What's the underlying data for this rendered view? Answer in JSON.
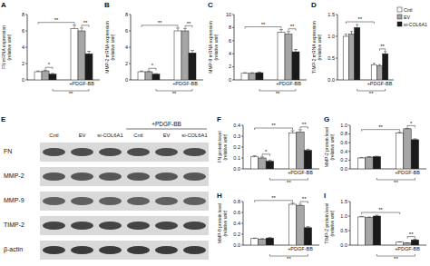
{
  "chart_data": [
    {
      "panel": "A",
      "type": "bar",
      "y_label": [
        "FN mRNA expression",
        "(relative unit)"
      ],
      "categories": [
        null,
        "+PDGF-BB"
      ],
      "ylim": [
        0,
        8
      ],
      "yticks": [
        0,
        2,
        4,
        6,
        8
      ],
      "series": [
        {
          "color": "#ffffff",
          "values": [
            1.0,
            6.3
          ],
          "errors": [
            0.08,
            0.4
          ]
        },
        {
          "color": "#a6a6a6",
          "values": [
            1.1,
            6.0
          ],
          "errors": [
            0.1,
            0.35
          ]
        },
        {
          "color": "#1a1a1a",
          "values": [
            0.7,
            3.2
          ],
          "errors": [
            0.08,
            0.3
          ]
        }
      ],
      "brackets": [
        {
          "text": "*",
          "from": [
            1,
            0
          ],
          "to": [
            2,
            0
          ]
        },
        {
          "text": "**",
          "from": [
            1,
            1
          ],
          "to": [
            2,
            1
          ]
        },
        {
          "text": "**",
          "from": [
            0,
            0
          ],
          "to": [
            0,
            1
          ]
        }
      ],
      "brackets_below": [
        {
          "text": "**",
          "from": [
            2,
            0
          ],
          "to": [
            2,
            1
          ]
        }
      ]
    },
    {
      "panel": "B",
      "type": "bar",
      "y_label": [
        "MMP-2 mRNA expression",
        "(relative unit)"
      ],
      "categories": [
        null,
        "+PDGF-BB"
      ],
      "ylim": [
        0,
        8
      ],
      "yticks": [
        0,
        2,
        4,
        6,
        8
      ],
      "series": [
        {
          "color": "#ffffff",
          "values": [
            1.0,
            6.0
          ],
          "errors": [
            0.08,
            0.35
          ]
        },
        {
          "color": "#a6a6a6",
          "values": [
            1.0,
            6.0
          ],
          "errors": [
            0.08,
            0.3
          ]
        },
        {
          "color": "#1a1a1a",
          "values": [
            0.7,
            3.3
          ],
          "errors": [
            0.06,
            0.3
          ]
        }
      ],
      "brackets": [
        {
          "text": "*",
          "from": [
            1,
            0
          ],
          "to": [
            2,
            0
          ]
        },
        {
          "text": "**",
          "from": [
            1,
            1
          ],
          "to": [
            2,
            1
          ]
        },
        {
          "text": "**",
          "from": [
            0,
            0
          ],
          "to": [
            0,
            1
          ]
        }
      ],
      "brackets_below": [
        {
          "text": "**",
          "from": [
            2,
            0
          ],
          "to": [
            2,
            1
          ]
        }
      ]
    },
    {
      "panel": "C",
      "type": "bar",
      "y_label": [
        "MMP-9 mRNA expression",
        "(relative unit)"
      ],
      "categories": [
        null,
        "+PDGF-BB"
      ],
      "ylim": [
        0,
        10
      ],
      "yticks": [
        0,
        2,
        4,
        6,
        8,
        10
      ],
      "series": [
        {
          "color": "#ffffff",
          "values": [
            1.0,
            7.3
          ],
          "errors": [
            0.1,
            0.4
          ]
        },
        {
          "color": "#a6a6a6",
          "values": [
            1.0,
            7.0
          ],
          "errors": [
            0.1,
            0.4
          ]
        },
        {
          "color": "#1a1a1a",
          "values": [
            1.1,
            4.3
          ],
          "errors": [
            0.1,
            0.35
          ]
        }
      ],
      "brackets": [
        {
          "text": "**",
          "from": [
            1,
            1
          ],
          "to": [
            2,
            1
          ]
        },
        {
          "text": "**",
          "from": [
            0,
            0
          ],
          "to": [
            0,
            1
          ]
        }
      ],
      "brackets_below": [
        {
          "text": "**",
          "from": [
            2,
            0
          ],
          "to": [
            2,
            1
          ]
        }
      ]
    },
    {
      "panel": "D",
      "type": "bar",
      "y_label": [
        "TIMP-2 mRNA expression",
        "(relative unit)"
      ],
      "categories": [
        null,
        "+PDGF-BB"
      ],
      "ylim": [
        0,
        1.5
      ],
      "yticks": [
        {
          "value": 0,
          "label": "0.0"
        },
        {
          "value": 0.5,
          "label": "0.5"
        },
        {
          "value": 1,
          "label": "1.0"
        },
        {
          "value": 1.5,
          "label": "1.5"
        }
      ],
      "legend": "right",
      "series": [
        {
          "name": "Cntl",
          "color": "#ffffff",
          "values": [
            1.0,
            0.35
          ],
          "errors": [
            0.05,
            0.03
          ]
        },
        {
          "name": "EV",
          "color": "#a6a6a6",
          "values": [
            1.05,
            0.32
          ],
          "errors": [
            0.06,
            0.03
          ]
        },
        {
          "name": "si-COL6A1",
          "color": "#1a1a1a",
          "values": [
            1.2,
            0.6
          ],
          "errors": [
            0.07,
            0.05
          ]
        }
      ],
      "brackets": [
        {
          "text": "**",
          "from": [
            1,
            1
          ],
          "to": [
            2,
            1
          ]
        },
        {
          "text": "**",
          "from": [
            0,
            0
          ],
          "to": [
            0,
            1
          ]
        }
      ],
      "brackets_below": [
        {
          "text": "**",
          "from": [
            2,
            0
          ],
          "to": [
            2,
            1
          ]
        }
      ]
    },
    {
      "panel": "F",
      "type": "bar",
      "y_label": [
        "FN protein level",
        "(relative unit)"
      ],
      "categories": [
        null,
        "+PDGF-BB"
      ],
      "ylim": [
        0,
        0.4
      ],
      "yticks": [
        {
          "value": 0,
          "label": "0.0"
        },
        {
          "value": 0.1,
          "label": "0.1"
        },
        {
          "value": 0.2,
          "label": "0.2"
        },
        {
          "value": 0.3,
          "label": "0.3"
        },
        {
          "value": 0.4,
          "label": "0.4"
        }
      ],
      "series": [
        {
          "color": "#ffffff",
          "values": [
            0.11,
            0.33
          ],
          "errors": [
            0.01,
            0.02
          ]
        },
        {
          "color": "#a6a6a6",
          "values": [
            0.1,
            0.34
          ],
          "errors": [
            0.01,
            0.02
          ]
        },
        {
          "color": "#1a1a1a",
          "values": [
            0.07,
            0.17
          ],
          "errors": [
            0.01,
            0.01
          ]
        }
      ],
      "brackets": [
        {
          "text": "*",
          "from": [
            1,
            0
          ],
          "to": [
            2,
            0
          ]
        },
        {
          "text": "**",
          "from": [
            1,
            1
          ],
          "to": [
            2,
            1
          ]
        },
        {
          "text": "**",
          "from": [
            0,
            0
          ],
          "to": [
            0,
            1
          ]
        }
      ],
      "brackets_below": [
        {
          "text": "**",
          "from": [
            2,
            0
          ],
          "to": [
            2,
            1
          ]
        }
      ]
    },
    {
      "panel": "G",
      "type": "bar",
      "y_label": [
        "MMP-2 protein level",
        "(relative unit)"
      ],
      "categories": [
        null,
        "+PDGF-BB"
      ],
      "ylim": [
        0,
        1.0
      ],
      "yticks": [
        {
          "value": 0,
          "label": "0.0"
        },
        {
          "value": 0.2,
          "label": "0.2"
        },
        {
          "value": 0.4,
          "label": "0.4"
        },
        {
          "value": 0.6,
          "label": "0.6"
        },
        {
          "value": 0.8,
          "label": "0.8"
        },
        {
          "value": 1,
          "label": "1.0"
        }
      ],
      "series": [
        {
          "color": "#ffffff",
          "values": [
            0.25,
            0.82
          ],
          "errors": [
            0.01,
            0.02
          ]
        },
        {
          "color": "#a6a6a6",
          "values": [
            0.27,
            0.92
          ],
          "errors": [
            0.01,
            0.01
          ]
        },
        {
          "color": "#1a1a1a",
          "values": [
            0.28,
            0.67
          ],
          "errors": [
            0.01,
            0.02
          ]
        }
      ],
      "brackets": [
        {
          "text": "*",
          "from": [
            1,
            1
          ],
          "to": [
            2,
            1
          ]
        },
        {
          "text": "**",
          "from": [
            0,
            0
          ],
          "to": [
            0,
            1
          ]
        }
      ],
      "brackets_below": [
        {
          "text": "**",
          "from": [
            2,
            0
          ],
          "to": [
            2,
            1
          ]
        }
      ]
    },
    {
      "panel": "H",
      "type": "bar",
      "y_label": [
        "MMP-9 protein level",
        "(relative unit)"
      ],
      "categories": [
        null,
        "+PDGF-BB"
      ],
      "ylim": [
        0,
        0.8
      ],
      "yticks": [
        {
          "value": 0,
          "label": "0.0"
        },
        {
          "value": 0.2,
          "label": "0.2"
        },
        {
          "value": 0.4,
          "label": "0.4"
        },
        {
          "value": 0.6,
          "label": "0.6"
        },
        {
          "value": 0.8,
          "label": "0.8"
        }
      ],
      "series": [
        {
          "color": "#ffffff",
          "values": [
            0.12,
            0.75
          ],
          "errors": [
            0.01,
            0.02
          ]
        },
        {
          "color": "#a6a6a6",
          "values": [
            0.11,
            0.73
          ],
          "errors": [
            0.01,
            0.02
          ]
        },
        {
          "color": "#1a1a1a",
          "values": [
            0.13,
            0.32
          ],
          "errors": [
            0.01,
            0.02
          ]
        }
      ],
      "brackets": [
        {
          "text": "**",
          "from": [
            1,
            1
          ],
          "to": [
            2,
            1
          ]
        },
        {
          "text": "**",
          "from": [
            0,
            0
          ],
          "to": [
            0,
            1
          ]
        }
      ],
      "brackets_below": [
        {
          "text": "**",
          "from": [
            2,
            0
          ],
          "to": [
            2,
            1
          ]
        }
      ]
    },
    {
      "panel": "I",
      "type": "bar",
      "y_label": [
        "TIMP-2 protein level",
        "(relative unit)"
      ],
      "categories": [
        null,
        "+PDGF-BB"
      ],
      "ylim": [
        0,
        1.5
      ],
      "yticks": [
        {
          "value": 0,
          "label": "0.0"
        },
        {
          "value": 0.5,
          "label": "0.5"
        },
        {
          "value": 1,
          "label": "1.0"
        },
        {
          "value": 1.5,
          "label": "1.5"
        }
      ],
      "series": [
        {
          "color": "#ffffff",
          "values": [
            0.97,
            0.1
          ],
          "errors": [
            0.02,
            0.01
          ]
        },
        {
          "color": "#a6a6a6",
          "values": [
            0.95,
            0.07
          ],
          "errors": [
            0.02,
            0.01
          ]
        },
        {
          "color": "#1a1a1a",
          "values": [
            1.0,
            0.18
          ],
          "errors": [
            0.03,
            0.02
          ]
        }
      ],
      "brackets": [
        {
          "text": "**",
          "from": [
            1,
            1
          ],
          "to": [
            2,
            1
          ]
        },
        {
          "text": "**",
          "from": [
            0,
            0
          ],
          "to": [
            0,
            1
          ]
        }
      ],
      "brackets_below": [
        {
          "text": "**",
          "from": [
            2,
            0
          ],
          "to": [
            2,
            1
          ]
        }
      ]
    }
  ],
  "blot": {
    "panel": "E",
    "lanes": [
      "Cntl",
      "EV",
      "si-COL6A1",
      "Cntl",
      "EV",
      "si-COL6A1"
    ],
    "treatment": "+PDGF-BB",
    "rows": [
      "FN",
      "MMP-2",
      "MMP-9",
      "TIMP-2",
      "β-actin"
    ]
  }
}
